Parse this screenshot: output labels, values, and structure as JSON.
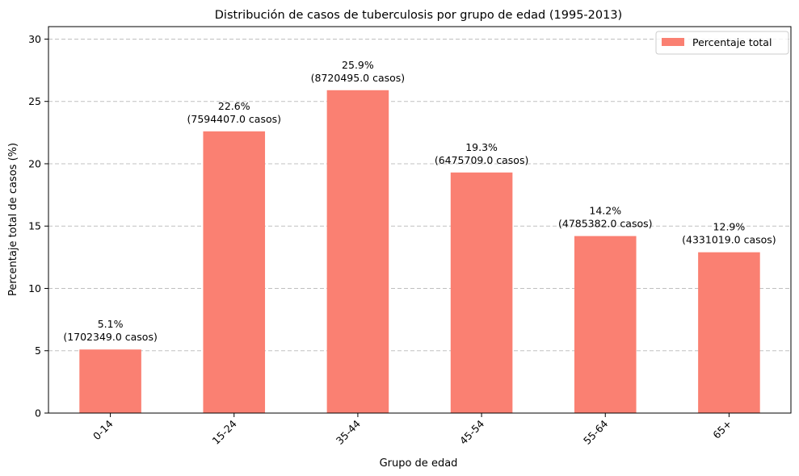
{
  "chart_data": {
    "type": "bar",
    "title": "Distribución de casos de tuberculosis por grupo de edad (1995-2013)",
    "xlabel": "Grupo de edad",
    "ylabel": "Percentaje total de casos (%)",
    "categories": [
      "0-14",
      "15-24",
      "35-44",
      "45-54",
      "55-64",
      "65+"
    ],
    "series": [
      {
        "name": "Percentaje total",
        "values": [
          5.1,
          22.6,
          25.9,
          19.3,
          14.2,
          12.9
        ],
        "color": "#fa8072"
      }
    ],
    "data_labels": [
      [
        "5.1%",
        "(1702349.0 casos)"
      ],
      [
        "22.6%",
        "(7594407.0 casos)"
      ],
      [
        "25.9%",
        "(8720495.0 casos)"
      ],
      [
        "19.3%",
        "(6475709.0 casos)"
      ],
      [
        "14.2%",
        "(4785382.0 casos)"
      ],
      [
        "12.9%",
        "(4331019.0 casos)"
      ]
    ],
    "ylim": [
      0,
      31
    ],
    "yticks": [
      0,
      5,
      10,
      15,
      20,
      25,
      30
    ],
    "grid": "y-dashed",
    "legend_position": "top-right"
  }
}
